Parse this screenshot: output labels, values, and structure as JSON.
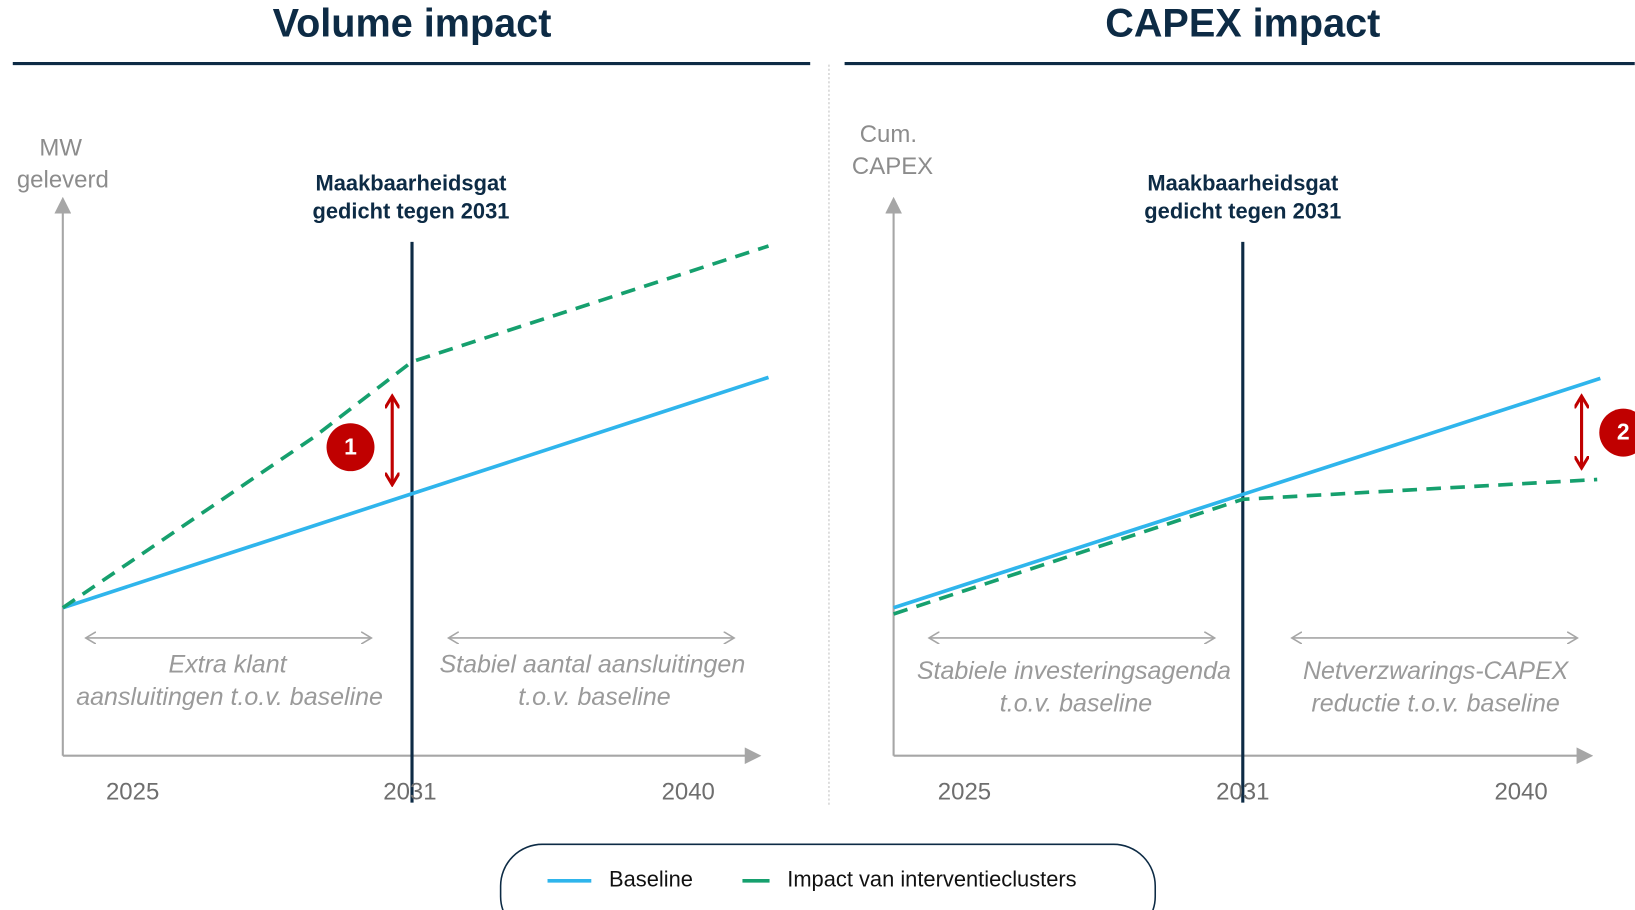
{
  "panels": [
    {
      "title": "Volume impact",
      "y_axis_label": [
        "MW",
        "geleverd"
      ],
      "annotation": [
        "Maakbaarheidsgat",
        "gedicht tegen 2031"
      ],
      "x_labels": [
        "2025",
        "2031",
        "2040"
      ],
      "left_note": [
        "Extra klant",
        "aansluitingen t.o.v. baseline"
      ],
      "right_note": [
        "Stabiel aantal aansluitingen",
        "t.o.v. baseline"
      ],
      "badge": "1"
    },
    {
      "title": "CAPEX impact",
      "y_axis_label": [
        "Cum.",
        "CAPEX"
      ],
      "annotation": [
        "Maakbaarheidsgat",
        "gedicht tegen 2031"
      ],
      "x_labels": [
        "2025",
        "2031",
        "2040"
      ],
      "left_note": [
        "Stabiele investeringsagenda",
        "t.o.v. baseline"
      ],
      "right_note": [
        "Netverzwarings-CAPEX",
        "reductie t.o.v. baseline"
      ],
      "badge": "2"
    }
  ],
  "legend": [
    "Baseline",
    "Impact van interventieclusters"
  ]
}
